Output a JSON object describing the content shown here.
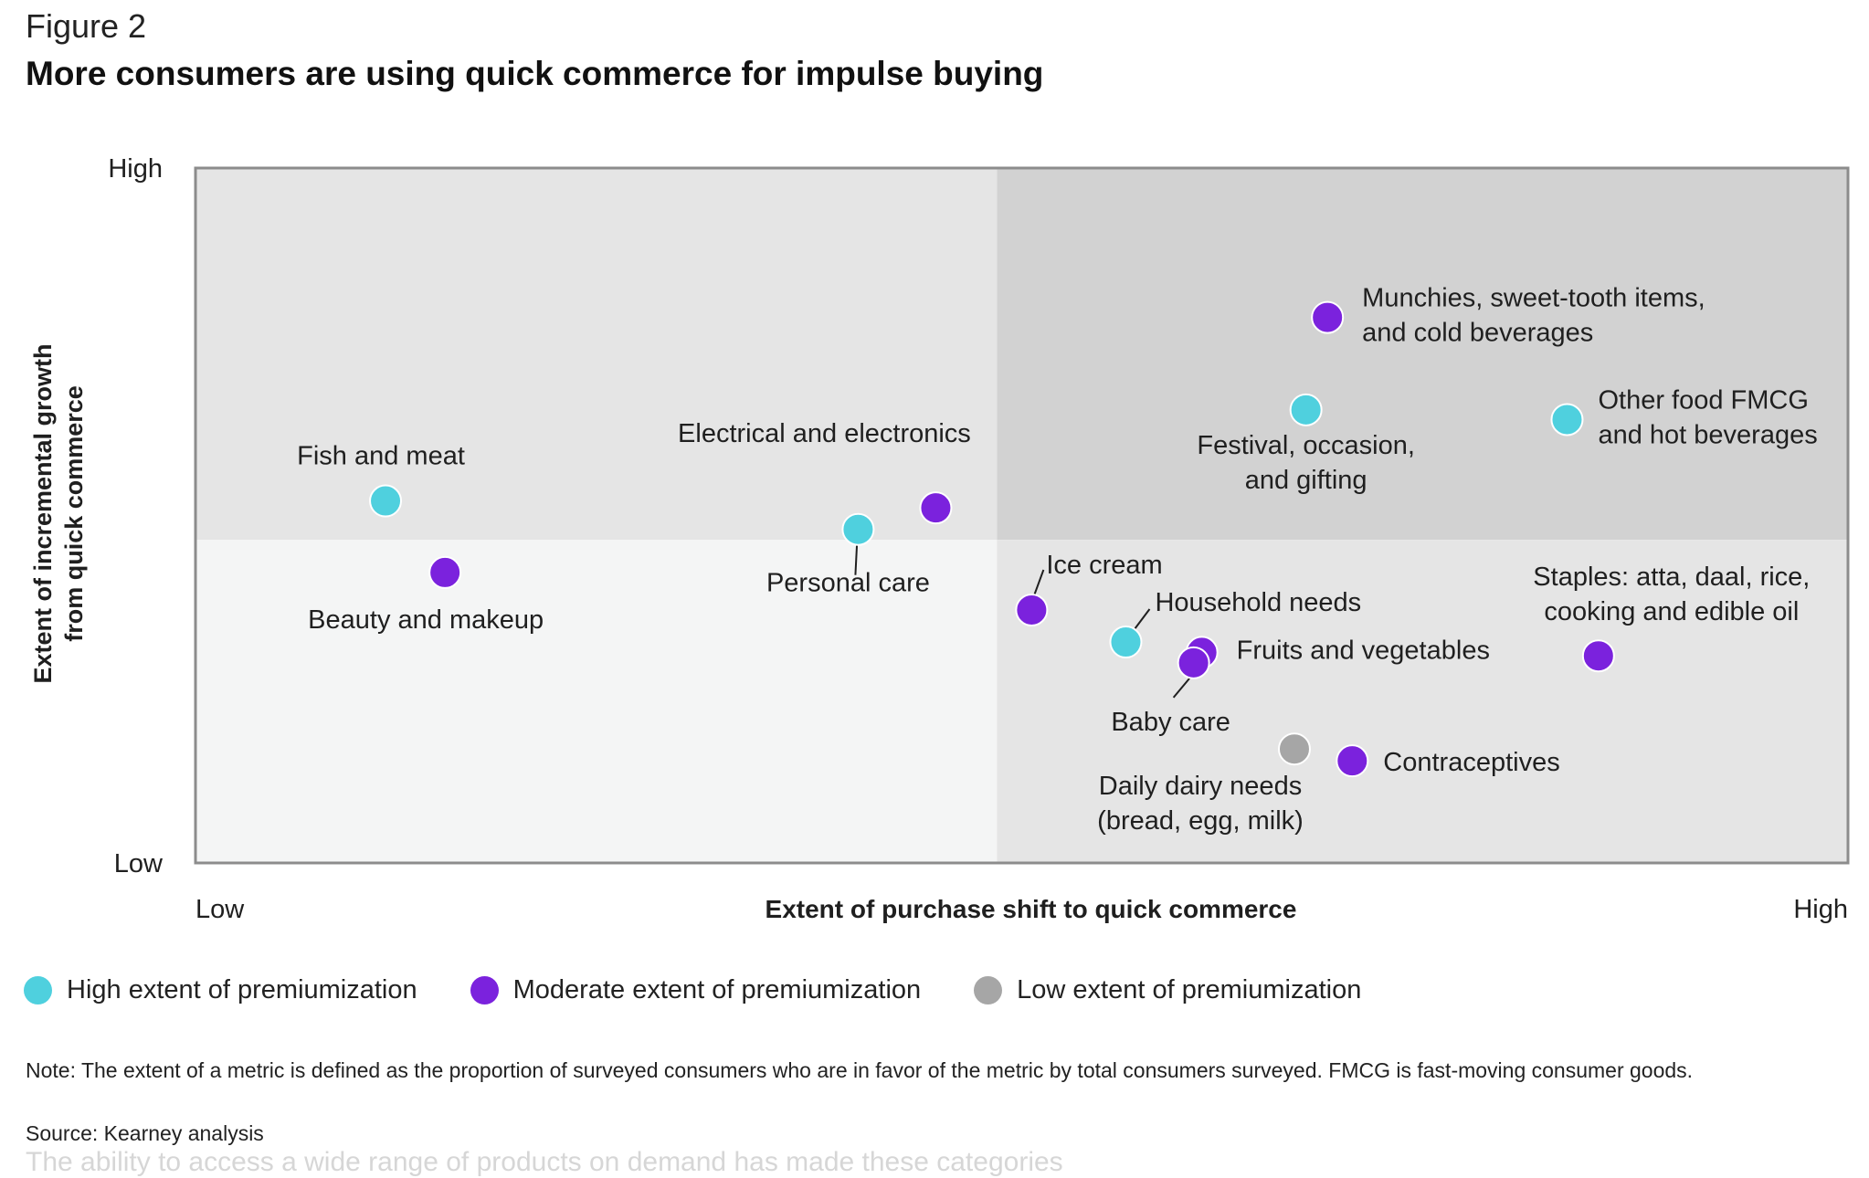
{
  "figure_label": "Figure 2",
  "title": "More consumers are using quick commerce for impulse buying",
  "colors": {
    "high": "#4fd0de",
    "moderate": "#7b22dd",
    "low": "#a6a6a6",
    "quad_low_low": "#f4f5f5",
    "quad_low_high": "#e5e5e5",
    "quad_high_high": "#d2d2d2",
    "quad_high_low": "#e5e5e5",
    "frame": "#8c8c8c"
  },
  "legend": [
    {
      "key": "high",
      "label": "High extent of premiumization"
    },
    {
      "key": "moderate",
      "label": "Moderate extent of premiumization"
    },
    {
      "key": "low",
      "label": "Low extent of premiumization"
    }
  ],
  "chart_data": {
    "type": "scatter",
    "xlabel": "Extent of purchase shift to quick commerce",
    "ylabel": "Extent of incremental growth from quick commerce",
    "x_ticks": [
      "Low",
      "High"
    ],
    "y_ticks": [
      "Low",
      "High"
    ],
    "xlim": [
      0,
      100
    ],
    "ylim": [
      0,
      100
    ],
    "quadrant_split": {
      "x": 48.5,
      "y": 46.5
    },
    "points": [
      {
        "label": "Munchies, sweet-tooth items, and cold beverages",
        "x": 68.5,
        "y": 78.5,
        "premiumization": "moderate"
      },
      {
        "label": "Festival, occasion, and gifting",
        "x": 67.2,
        "y": 65.2,
        "premiumization": "high"
      },
      {
        "label": "Other food FMCG and hot beverages",
        "x": 83.0,
        "y": 63.8,
        "premiumization": "high"
      },
      {
        "label": "Fish and meat",
        "x": 11.5,
        "y": 52.1,
        "premiumization": "high"
      },
      {
        "label": "Electrical and electronics",
        "x": 44.8,
        "y": 51.1,
        "premiumization": "moderate"
      },
      {
        "label": "Personal care",
        "x": 40.1,
        "y": 48.0,
        "premiumization": "high"
      },
      {
        "label": "Beauty and makeup",
        "x": 15.1,
        "y": 41.8,
        "premiumization": "moderate"
      },
      {
        "label": "Ice cream",
        "x": 50.6,
        "y": 36.4,
        "premiumization": "moderate"
      },
      {
        "label": "Household needs",
        "x": 56.3,
        "y": 31.8,
        "premiumization": "high"
      },
      {
        "label": "Fruits and vegetables",
        "x": 60.9,
        "y": 30.3,
        "premiumization": "moderate"
      },
      {
        "label": "Baby care",
        "x": 60.4,
        "y": 28.8,
        "premiumization": "moderate"
      },
      {
        "label": "Staples: atta, daal, rice, cooking and edible oil",
        "x": 84.9,
        "y": 29.8,
        "premiumization": "moderate"
      },
      {
        "label": "Daily dairy needs (bread, egg, milk)",
        "x": 66.5,
        "y": 16.4,
        "premiumization": "low"
      },
      {
        "label": "Contraceptives",
        "x": 70.0,
        "y": 14.7,
        "premiumization": "moderate"
      }
    ],
    "grid": false,
    "legend_position": "bottom"
  },
  "note": "Note: The extent of a metric is defined as the proportion of surveyed consumers who are in favor of the metric by total consumers surveyed. FMCG is fast-moving consumer goods.",
  "source": "Source: Kearney analysis",
  "faded_text": "The ability to access a wide range of products on demand has made these categories"
}
